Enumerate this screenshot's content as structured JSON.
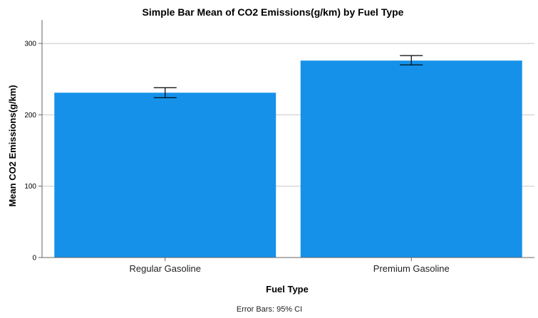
{
  "chart_data": {
    "type": "bar",
    "title": "Simple Bar Mean of CO2 Emissions(g/km) by Fuel Type",
    "xlabel": "Fuel Type",
    "ylabel": "Mean CO2 Emissions(g/km)",
    "categories": [
      "Regular Gasoline",
      "Premium Gasoline"
    ],
    "values": [
      231,
      276
    ],
    "error_bars": {
      "type": "95% CI",
      "lower": [
        224,
        270
      ],
      "upper": [
        238,
        283
      ]
    },
    "ylim": [
      0,
      333
    ],
    "yticks": [
      0,
      100,
      200,
      300
    ],
    "grid": true,
    "bar_color": "#1591e9",
    "footnote": "Error Bars: 95% CI"
  }
}
